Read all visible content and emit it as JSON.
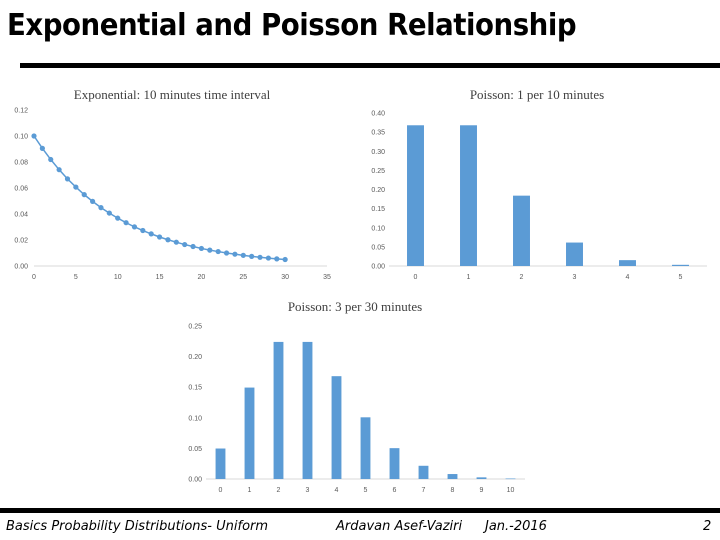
{
  "slide": {
    "title": "Exponential and Poisson Relationship",
    "footer_left": "Basics Probability Distributions- Uniform",
    "footer_author": "Ardavan Asef-Vaziri",
    "footer_date": "Jan.-2016",
    "page_number": "2"
  },
  "colors": {
    "series": "#5B9BD5",
    "axis": "#d9d9d9",
    "tick_text": "#595959"
  },
  "chart_data": [
    {
      "type": "line",
      "title": "Exponential: 10 minutes time interval",
      "x": [
        0,
        1,
        2,
        3,
        4,
        5,
        6,
        7,
        8,
        9,
        10,
        11,
        12,
        13,
        14,
        15,
        16,
        17,
        18,
        19,
        20,
        21,
        22,
        23,
        24,
        25,
        26,
        27,
        28,
        29,
        30
      ],
      "values": [
        0.1,
        0.0905,
        0.0819,
        0.0741,
        0.067,
        0.0607,
        0.0549,
        0.0497,
        0.0449,
        0.0407,
        0.0368,
        0.0333,
        0.0301,
        0.0273,
        0.0247,
        0.0223,
        0.0202,
        0.0183,
        0.0165,
        0.015,
        0.0135,
        0.0122,
        0.0111,
        0.01,
        0.0091,
        0.0082,
        0.0074,
        0.0067,
        0.0061,
        0.0055,
        0.005
      ],
      "xlim": [
        0,
        35
      ],
      "ylim": [
        0,
        0.12
      ],
      "xticks": [
        "0",
        "5",
        "10",
        "15",
        "20",
        "25",
        "30",
        "35"
      ],
      "yticks": [
        "0.00",
        "0.02",
        "0.04",
        "0.06",
        "0.08",
        "0.10",
        "0.12"
      ],
      "xlabel": "",
      "ylabel": "",
      "grid": false,
      "markers": true
    },
    {
      "type": "bar",
      "title": "Poisson: 1 per 10 minutes",
      "categories": [
        "0",
        "1",
        "2",
        "3",
        "4",
        "5"
      ],
      "values": [
        0.3679,
        0.3679,
        0.1839,
        0.0613,
        0.0153,
        0.0031
      ],
      "ylim": [
        0,
        0.4
      ],
      "yticks": [
        "0.00",
        "0.05",
        "0.10",
        "0.15",
        "0.20",
        "0.25",
        "0.30",
        "0.35",
        "0.40"
      ],
      "xlabel": "",
      "ylabel": "",
      "grid": false
    },
    {
      "type": "bar",
      "title": "Poisson: 3 per 30 minutes",
      "categories": [
        "0",
        "1",
        "2",
        "3",
        "4",
        "5",
        "6",
        "7",
        "8",
        "9",
        "10"
      ],
      "values": [
        0.0498,
        0.1494,
        0.224,
        0.224,
        0.168,
        0.1008,
        0.0504,
        0.0216,
        0.0081,
        0.0027,
        0.0008
      ],
      "ylim": [
        0,
        0.25
      ],
      "yticks": [
        "0.00",
        "0.05",
        "0.10",
        "0.15",
        "0.20",
        "0.25"
      ],
      "xlabel": "",
      "ylabel": "",
      "grid": false
    }
  ]
}
